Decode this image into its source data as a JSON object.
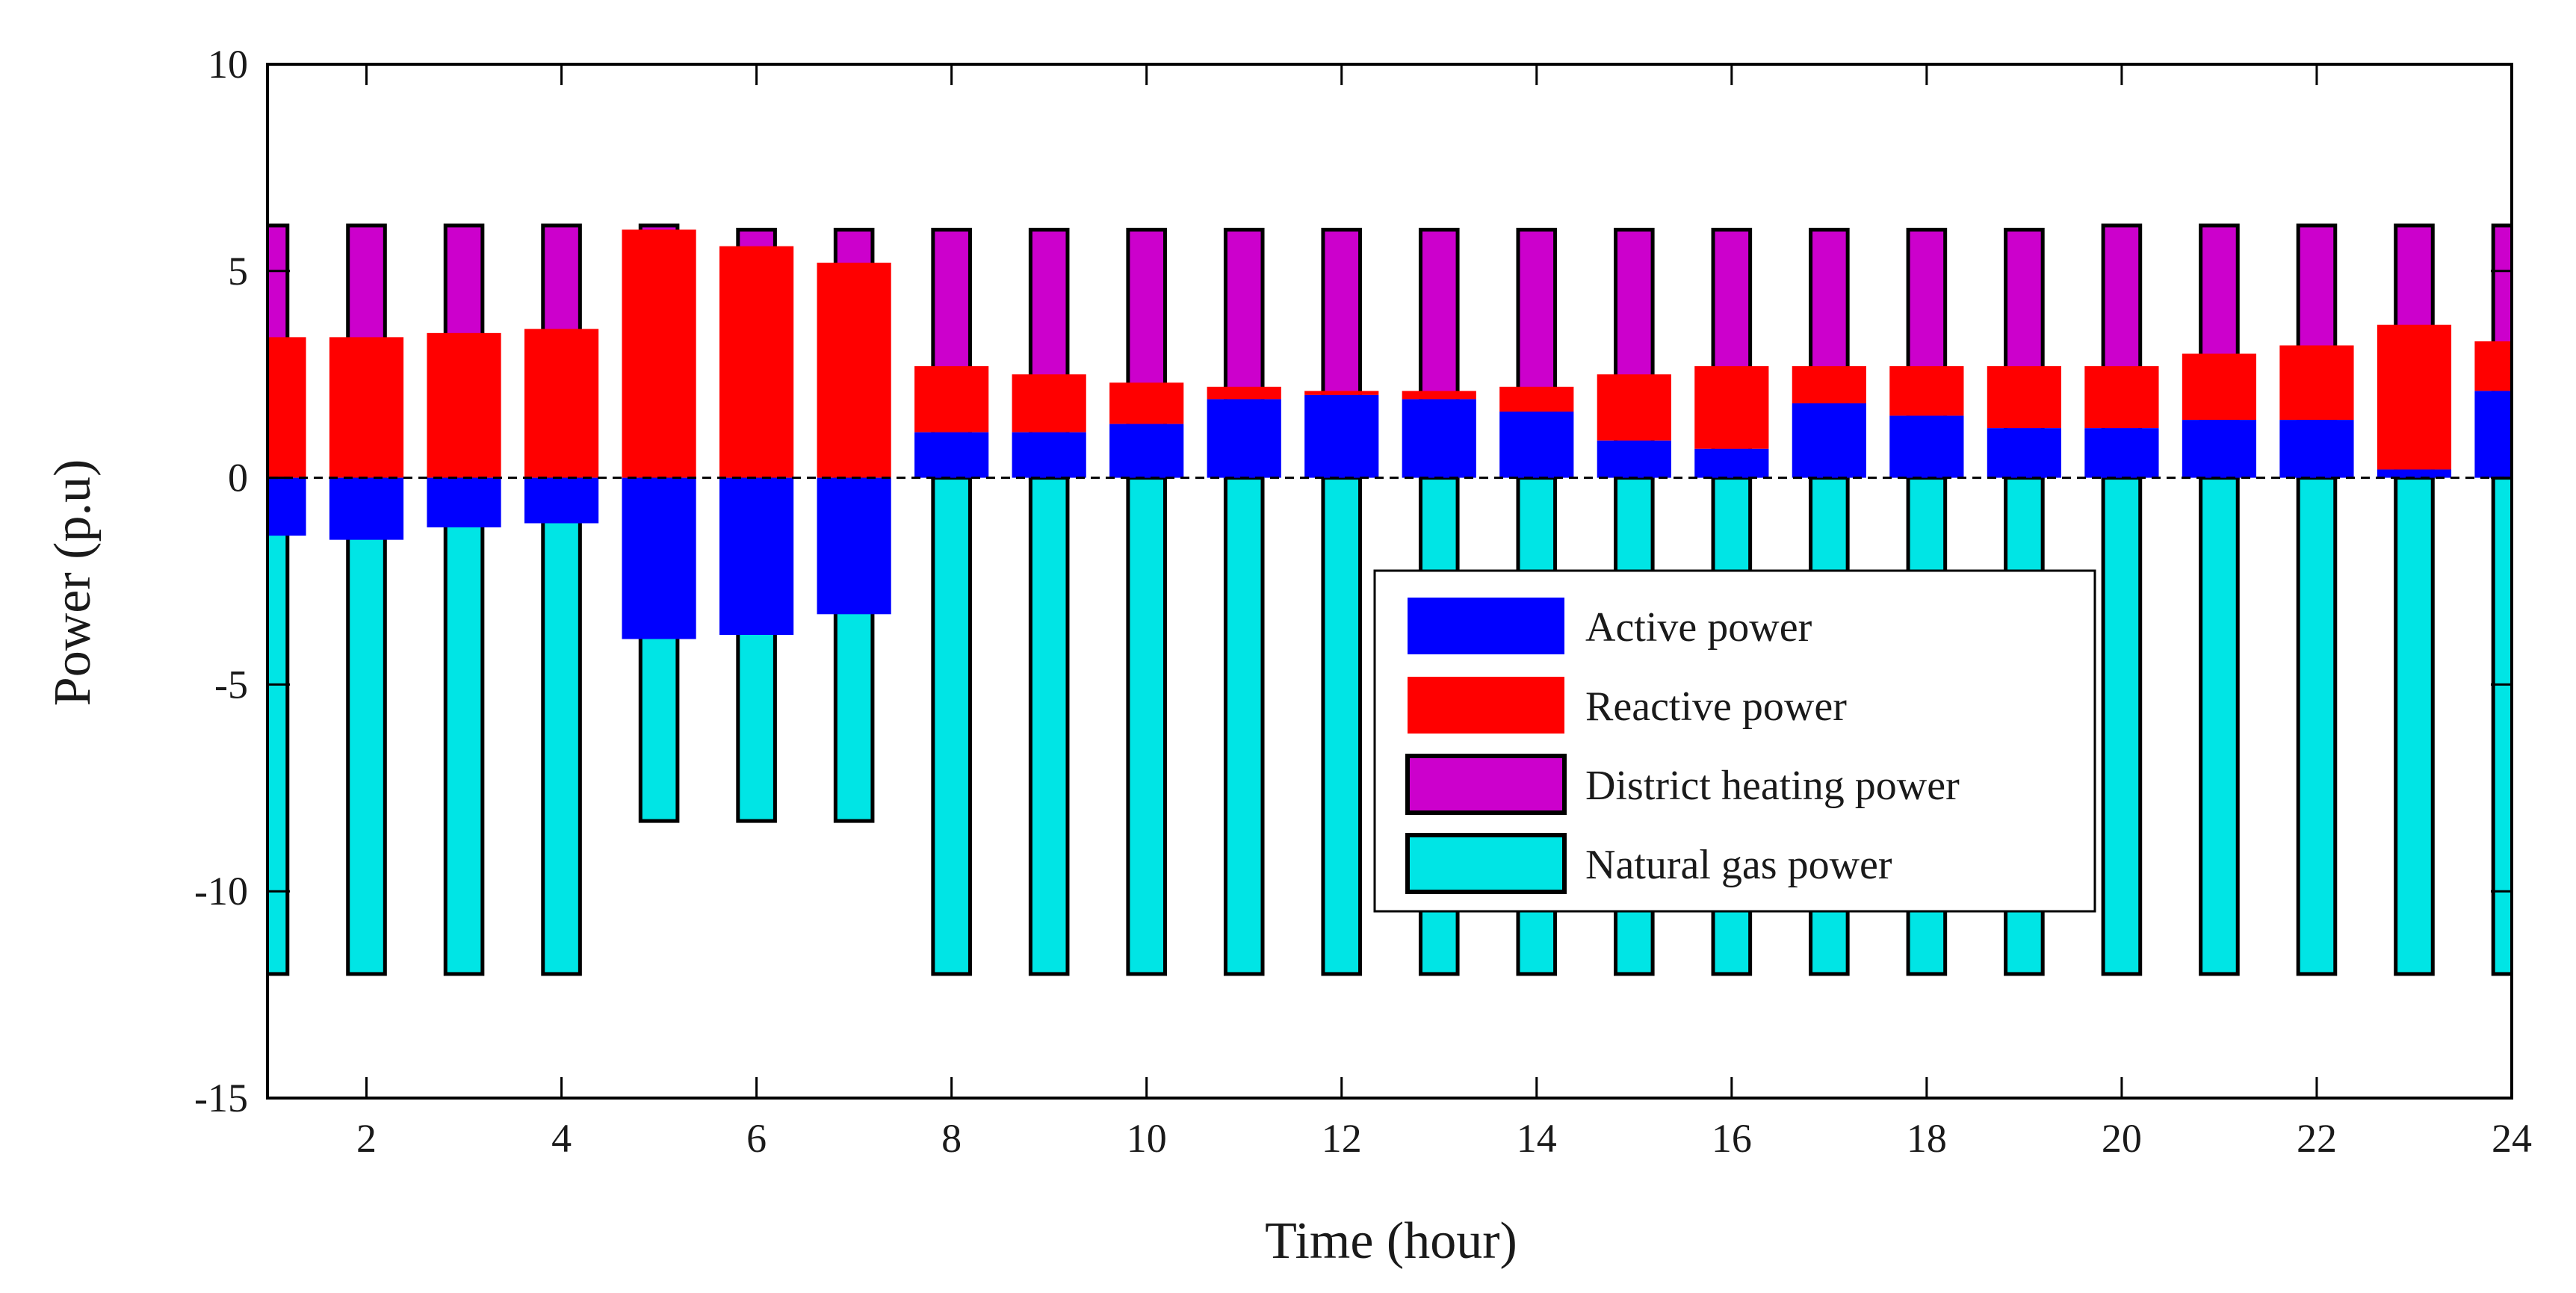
{
  "chart_data": {
    "type": "bar",
    "xlabel": "Time (hour)",
    "ylabel": "Power (p.u)",
    "xlim": [
      1,
      24
    ],
    "ylim": [
      -15,
      10
    ],
    "xticks": [
      2,
      4,
      6,
      8,
      10,
      12,
      14,
      16,
      18,
      20,
      22,
      24
    ],
    "yticks": [
      -15,
      -10,
      -5,
      0,
      5,
      10
    ],
    "hours": [
      1,
      2,
      3,
      4,
      5,
      6,
      7,
      8,
      9,
      10,
      11,
      12,
      13,
      14,
      15,
      16,
      17,
      18,
      19,
      20,
      21,
      22,
      23,
      24
    ],
    "zero_line": "dashed",
    "legend_position": "center-right",
    "series": [
      {
        "name": "Active power",
        "key": "active",
        "color": "#0000FF",
        "edge": "none",
        "values": [
          -1.4,
          -1.5,
          -1.2,
          -1.1,
          -3.9,
          -3.8,
          -3.3,
          1.1,
          1.1,
          1.3,
          1.9,
          2.0,
          1.9,
          1.6,
          0.9,
          0.7,
          1.8,
          1.5,
          1.2,
          1.2,
          1.4,
          1.4,
          0.2,
          2.1
        ]
      },
      {
        "name": "Reactive power",
        "key": "reactive",
        "color": "#FF0000",
        "edge": "none",
        "values": [
          3.4,
          3.4,
          3.5,
          3.6,
          6.0,
          5.6,
          5.2,
          2.7,
          2.5,
          2.3,
          2.2,
          2.1,
          2.1,
          2.2,
          2.5,
          2.7,
          2.7,
          2.7,
          2.7,
          2.7,
          3.0,
          3.2,
          3.7,
          3.3
        ]
      },
      {
        "name": "District heating power",
        "key": "heating",
        "color": "#CC00CC",
        "edge": "#000000",
        "values": [
          6.1,
          6.1,
          6.1,
          6.1,
          6.1,
          6.0,
          6.0,
          6.0,
          6.0,
          6.0,
          6.0,
          6.0,
          6.0,
          6.0,
          6.0,
          6.0,
          6.0,
          6.0,
          6.0,
          6.1,
          6.1,
          6.1,
          6.1,
          6.1
        ]
      },
      {
        "name": "Natural gas power",
        "key": "gas",
        "color": "#00E5E5",
        "edge": "#000000",
        "values": [
          -12.0,
          -12.0,
          -12.0,
          -12.0,
          -8.3,
          -8.3,
          -8.3,
          -12.0,
          -12.0,
          -12.0,
          -12.0,
          -12.0,
          -12.0,
          -12.0,
          -12.0,
          -12.0,
          -12.0,
          -12.0,
          -12.0,
          -12.0,
          -12.0,
          -12.0,
          -12.0,
          -12.0
        ]
      }
    ]
  }
}
